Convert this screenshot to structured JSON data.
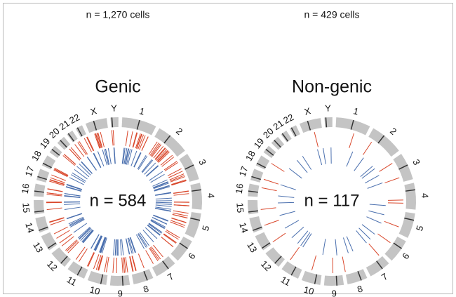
{
  "panels": [
    {
      "cells_label": "n = 1,270 cells",
      "title": "Genic",
      "center_label": "n = 584"
    },
    {
      "cells_label": "n = 429 cells",
      "title": "Non-genic",
      "center_label": "n = 117"
    }
  ],
  "chromosomes": [
    "1",
    "2",
    "3",
    "4",
    "5",
    "6",
    "7",
    "8",
    "9",
    "10",
    "11",
    "12",
    "13",
    "14",
    "15",
    "16",
    "17",
    "18",
    "19",
    "20",
    "21",
    "22",
    "X",
    "Y"
  ]
}
